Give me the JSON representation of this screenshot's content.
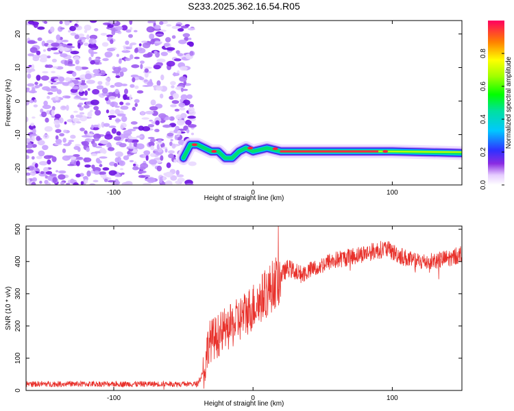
{
  "title": "S233.2025.362.16.54.R05",
  "chart_data": [
    {
      "type": "heatmap",
      "xlabel": "Height of straight line (km)",
      "ylabel": "Frequency (Hz)",
      "xlim": [
        -163,
        150
      ],
      "ylim": [
        -25,
        24
      ],
      "xticks": [
        -100,
        0,
        100
      ],
      "yticks": [
        -20,
        -10,
        0,
        10,
        20
      ],
      "colorbar": {
        "label": "Normalized spectral amplitude",
        "range": [
          0,
          1
        ],
        "ticks": [
          0.0,
          0.2,
          0.4,
          0.6,
          0.8
        ]
      },
      "noise_region_x": [
        -163,
        -47
      ],
      "ridge": [
        {
          "x": -50,
          "freq": -17
        },
        {
          "x": -45,
          "freq": -13
        },
        {
          "x": -40,
          "freq": -13
        },
        {
          "x": -35,
          "freq": -14
        },
        {
          "x": -30,
          "freq": -15
        },
        {
          "x": -25,
          "freq": -15
        },
        {
          "x": -20,
          "freq": -17
        },
        {
          "x": -15,
          "freq": -17
        },
        {
          "x": -10,
          "freq": -15
        },
        {
          "x": -5,
          "freq": -14
        },
        {
          "x": 0,
          "freq": -15
        },
        {
          "x": 5,
          "freq": -14.5
        },
        {
          "x": 10,
          "freq": -14
        },
        {
          "x": 15,
          "freq": -14.5
        },
        {
          "x": 20,
          "freq": -15
        },
        {
          "x": 60,
          "freq": -15
        },
        {
          "x": 100,
          "freq": -15
        },
        {
          "x": 150,
          "freq": -15.5
        }
      ]
    },
    {
      "type": "line",
      "xlabel": "Height of straight line (km)",
      "ylabel": "SNR (10 * v/v)",
      "xlim": [
        -163,
        150
      ],
      "ylim": [
        0,
        510
      ],
      "xticks": [
        -100,
        0,
        100
      ],
      "yticks": [
        0,
        100,
        200,
        300,
        400,
        500
      ],
      "color": "#e8302a",
      "trend": [
        {
          "x": -163,
          "y": 20
        },
        {
          "x": -40,
          "y": 20
        },
        {
          "x": -35,
          "y": 60
        },
        {
          "x": -32,
          "y": 150
        },
        {
          "x": -25,
          "y": 170
        },
        {
          "x": -15,
          "y": 200
        },
        {
          "x": -5,
          "y": 240
        },
        {
          "x": 5,
          "y": 280
        },
        {
          "x": 15,
          "y": 330
        },
        {
          "x": 25,
          "y": 380
        },
        {
          "x": 35,
          "y": 360
        },
        {
          "x": 45,
          "y": 380
        },
        {
          "x": 55,
          "y": 400
        },
        {
          "x": 65,
          "y": 410
        },
        {
          "x": 75,
          "y": 420
        },
        {
          "x": 85,
          "y": 430
        },
        {
          "x": 95,
          "y": 440
        },
        {
          "x": 105,
          "y": 420
        },
        {
          "x": 115,
          "y": 400
        },
        {
          "x": 125,
          "y": 400
        },
        {
          "x": 135,
          "y": 405
        },
        {
          "x": 145,
          "y": 415
        },
        {
          "x": 150,
          "y": 425
        }
      ]
    }
  ]
}
